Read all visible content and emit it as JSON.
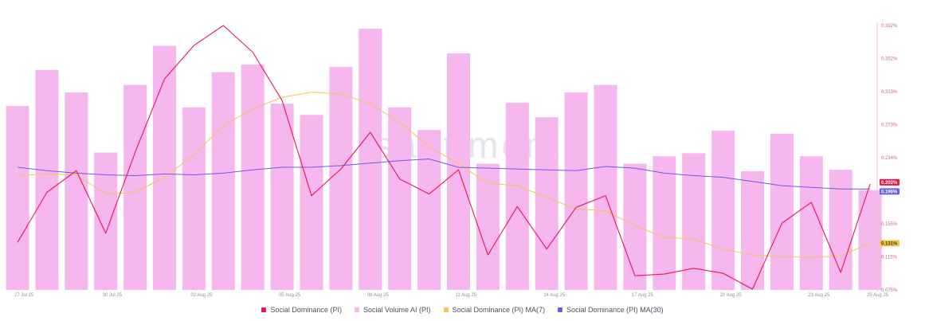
{
  "colors": {
    "dominance": "#e8164e",
    "volume": "#f6b6ee",
    "ma7": "#f5c451",
    "ma30": "#6b5ce7",
    "axis": "#f3c2cc"
  },
  "watermark": "santiment",
  "chart_data": {
    "type": "bar",
    "title": "",
    "xlabel": "",
    "ylabel": "",
    "x_tick_labels": [
      "27 Jul 25",
      "30 Jul 25",
      "02 Aug 25",
      "05 Aug 25",
      "08 Aug 25",
      "11 Aug 25",
      "14 Aug 25",
      "17 Aug 25",
      "20 Aug 25",
      "23 Aug 25",
      "25 Aug 25"
    ],
    "y_tick_labels": [
      "0.392%",
      "0.352%",
      "0.313%",
      "0.273%",
      "0.234%",
      "0.194%",
      "0.155%",
      "0.115%",
      "0.075%"
    ],
    "ylim": [
      0.075,
      0.392
    ],
    "series": [
      {
        "name": "Social Dominance (PI)",
        "type": "line",
        "y_unit": "%",
        "values": [
          0.132,
          0.192,
          0.218,
          0.143,
          0.24,
          0.328,
          0.368,
          0.392,
          0.36,
          0.302,
          0.188,
          0.22,
          0.264,
          0.208,
          0.19,
          0.219,
          0.117,
          0.175,
          0.124,
          0.174,
          0.188,
          0.092,
          0.094,
          0.101,
          0.095,
          0.076,
          0.155,
          0.18,
          0.096,
          0.202
        ]
      },
      {
        "name": "Social Volume AI (PI)",
        "type": "bar",
        "values": [
          245,
          293,
          263,
          183,
          273,
          325,
          243,
          290,
          300,
          248,
          233,
          297,
          348,
          243,
          213,
          315,
          168,
          249,
          230,
          263,
          273,
          168,
          178,
          182,
          212,
          158,
          208,
          178,
          160,
          133
        ]
      },
      {
        "name": "Social Dominance (PI) MA(7)",
        "type": "line",
        "y_unit": "%",
        "values": [
          0.212,
          0.214,
          0.213,
          0.19,
          0.192,
          0.21,
          0.237,
          0.272,
          0.292,
          0.306,
          0.312,
          0.31,
          0.298,
          0.276,
          0.247,
          0.226,
          0.203,
          0.2,
          0.186,
          0.172,
          0.17,
          0.152,
          0.138,
          0.136,
          0.124,
          0.117,
          0.115,
          0.114,
          0.116,
          0.131
        ]
      },
      {
        "name": "Social Dominance (PI) MA(30)",
        "type": "line",
        "y_unit": "%",
        "values": [
          0.222,
          0.218,
          0.215,
          0.213,
          0.212,
          0.214,
          0.213,
          0.215,
          0.219,
          0.222,
          0.222,
          0.224,
          0.227,
          0.23,
          0.232,
          0.222,
          0.221,
          0.22,
          0.219,
          0.218,
          0.223,
          0.221,
          0.215,
          0.212,
          0.21,
          0.205,
          0.2,
          0.198,
          0.196,
          0.196
        ]
      }
    ],
    "last_value_labels": {
      "dominance": "0.202%",
      "ma30": "0.196%",
      "ma7": "0.131%"
    },
    "legend_position": "bottom-center",
    "grid": false
  }
}
